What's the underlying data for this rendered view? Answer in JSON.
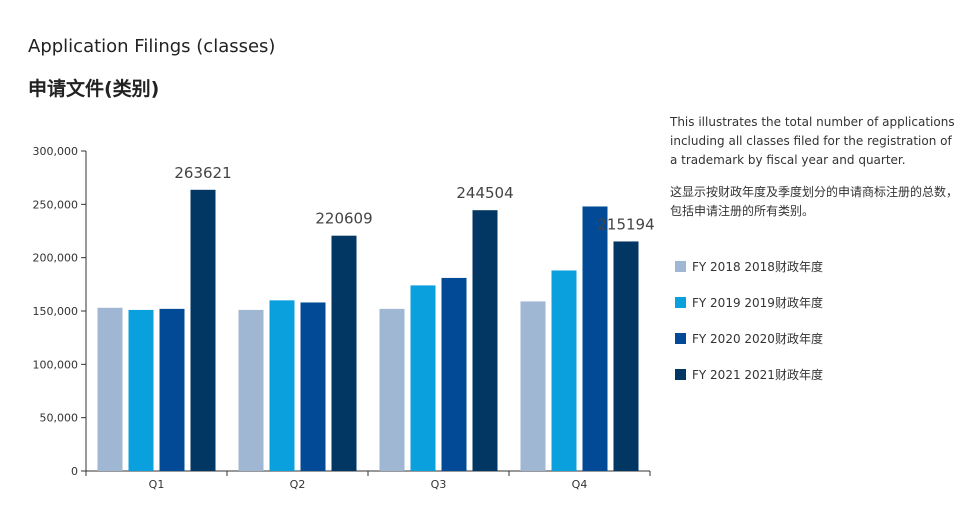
{
  "title_en": "Application Filings (classes)",
  "title_zh": "申请文件(类别)",
  "description_en": "This illustrates the total number of applications including all classes filed for the registration of a trademark by fiscal year and quarter.",
  "description_zh": "这显示按财政年度及季度划分的申请商标注册的总数，包括申请注册的所有类别。",
  "chart_data": {
    "type": "bar",
    "categories": [
      "Q1",
      "Q2",
      "Q3",
      "Q4"
    ],
    "ylim": [
      0,
      300000
    ],
    "yticks": [
      0,
      50000,
      100000,
      150000,
      200000,
      250000,
      300000
    ],
    "ytick_labels": [
      "0",
      "50,000",
      "100,000",
      "150,000",
      "200,000",
      "250,000",
      "300,000"
    ],
    "grid": false,
    "legend_position": "right",
    "series": [
      {
        "name": "FY 2018 2018财政年度",
        "color": "#9fb7d3",
        "values": [
          153000,
          151000,
          152000,
          159000
        ]
      },
      {
        "name": "FY 2019 2019财政年度",
        "color": "#0aa0dd",
        "values": [
          151000,
          160000,
          174000,
          188000
        ]
      },
      {
        "name": "FY 2020 2020财政年度",
        "color": "#024a95",
        "values": [
          152000,
          158000,
          181000,
          248000
        ]
      },
      {
        "name": "FY 2021 2021财政年度",
        "color": "#023763",
        "values": [
          263621,
          220609,
          244504,
          215194
        ],
        "data_labels": [
          "263621",
          "220609",
          "244504",
          "215194"
        ]
      }
    ]
  }
}
